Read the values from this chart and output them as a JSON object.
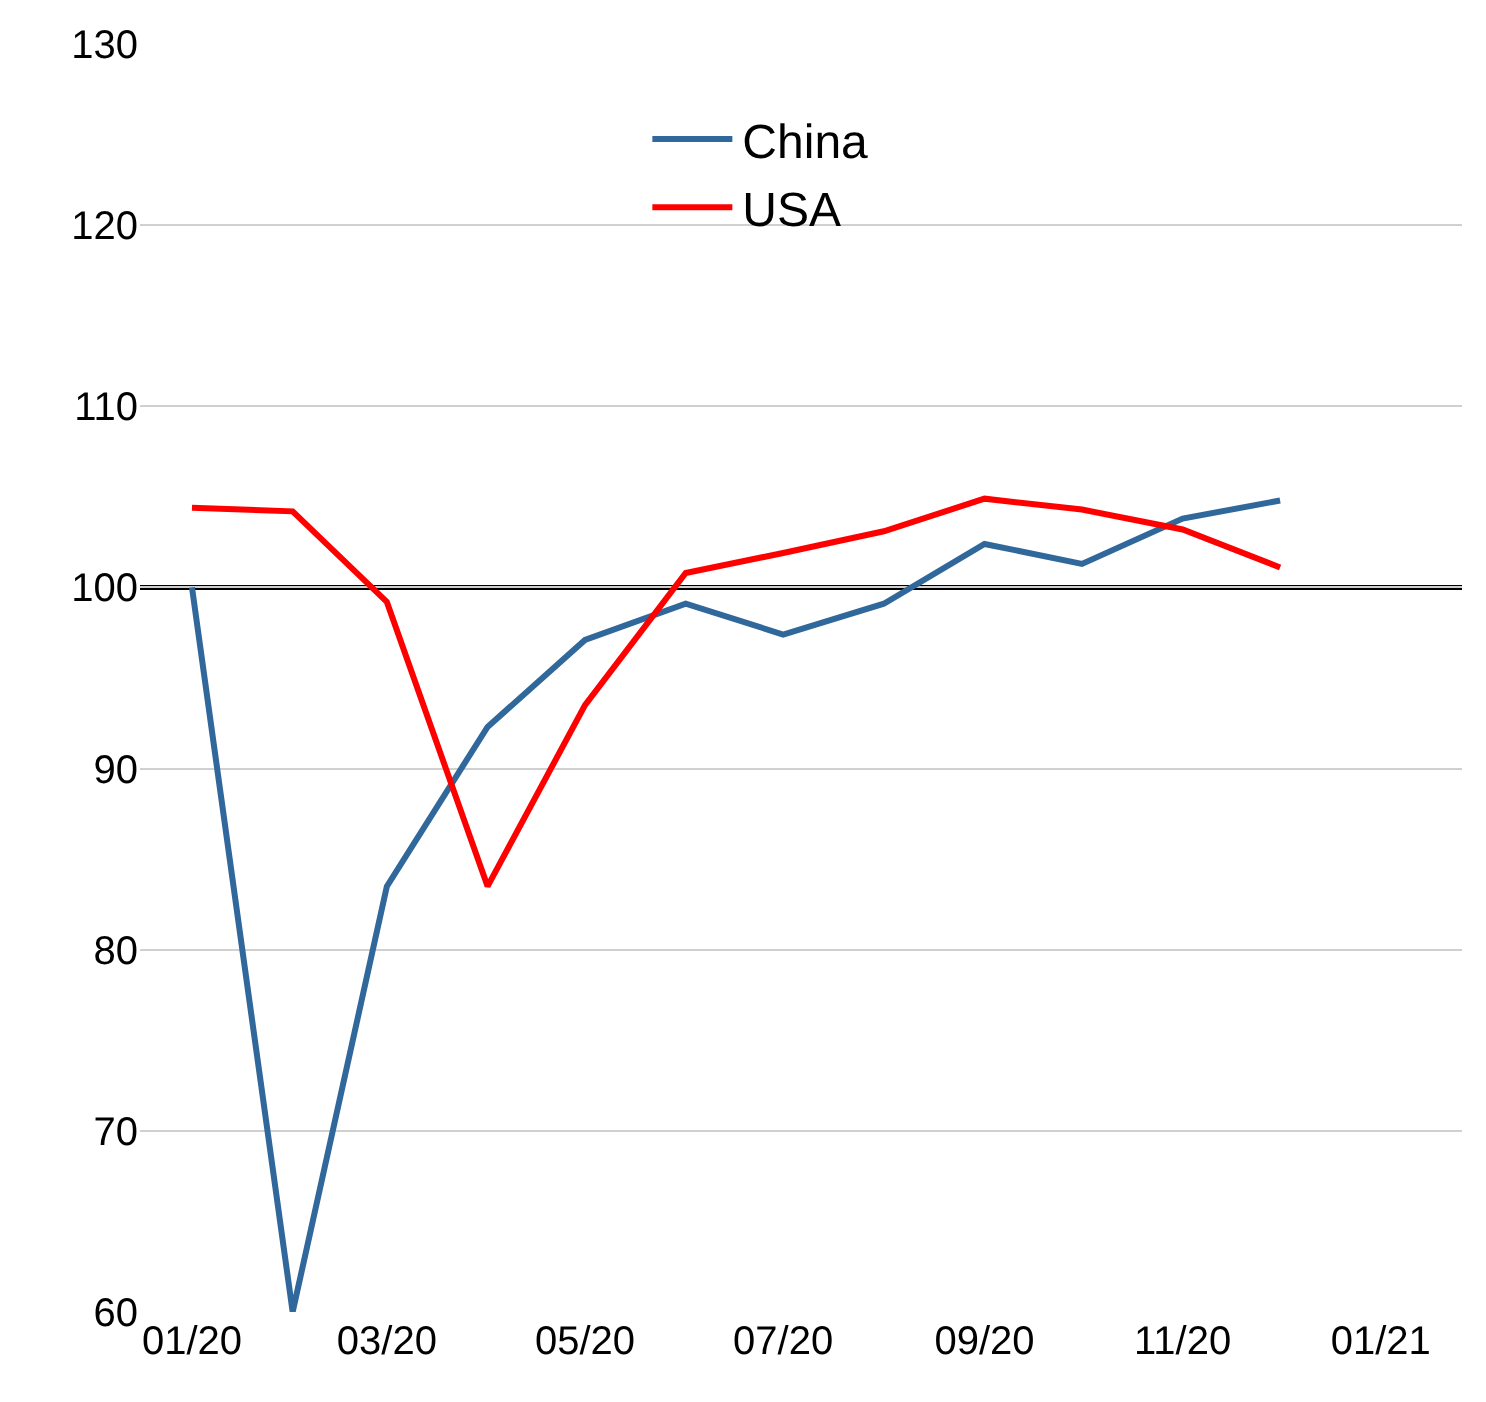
{
  "chart_data": {
    "type": "line",
    "x": [
      "2020-01",
      "2020-02",
      "2020-03",
      "2020-04",
      "2020-05",
      "2020-06",
      "2020-07",
      "2020-08",
      "2020-09",
      "2020-10",
      "2020-11",
      "2020-12"
    ],
    "series": [
      {
        "name": "China",
        "color": "#31689b",
        "values": [
          100,
          60,
          83.5,
          92.3,
          97.1,
          99.1,
          97.4,
          99.1,
          102.4,
          101.3,
          103.8,
          104.8
        ]
      },
      {
        "name": "USA",
        "color": "#ff0000",
        "values": [
          104.4,
          104.2,
          99.2,
          83.5,
          93.5,
          100.8,
          101.9,
          103.1,
          104.9,
          104.3,
          103.2,
          101.1
        ]
      }
    ],
    "xlim": [
      "2019-12-16",
      "2021-01-26"
    ],
    "xticks": [
      {
        "value": "2020-01-01",
        "label": "01/20"
      },
      {
        "value": "2020-03-01",
        "label": "03/20"
      },
      {
        "value": "2020-05-01",
        "label": "05/20"
      },
      {
        "value": "2020-07-01",
        "label": "07/20"
      },
      {
        "value": "2020-09-01",
        "label": "09/20"
      },
      {
        "value": "2020-11-01",
        "label": "11/20"
      },
      {
        "value": "2021-01-01",
        "label": "01/21"
      }
    ],
    "ylim": [
      60,
      130
    ],
    "yticks": [
      60,
      70,
      80,
      90,
      100,
      110,
      120,
      130
    ],
    "ref_lines": [
      {
        "axis": "y",
        "value": 100,
        "color": "#000000"
      }
    ],
    "grid": "y",
    "legend": "top",
    "marker": "none",
    "line_style": "solid"
  }
}
